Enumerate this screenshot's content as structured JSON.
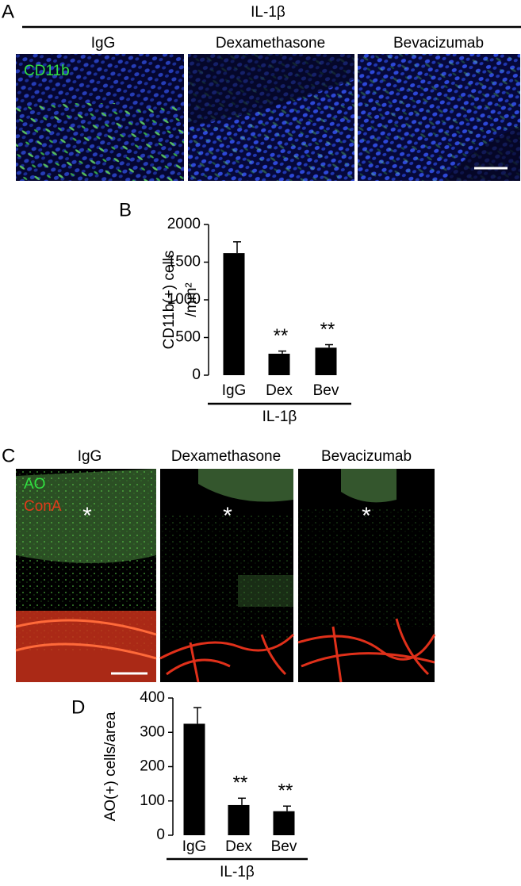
{
  "panels": {
    "A": {
      "label": "A",
      "group": "IL-1β",
      "columns": [
        "IgG",
        "Dexamethasone",
        "Bevacizumab"
      ],
      "stain": "CD11b"
    },
    "B": {
      "label": "B"
    },
    "C": {
      "label": "C",
      "columns": [
        "IgG",
        "Dexamethasone",
        "Bevacizumab"
      ],
      "stains": [
        "AO",
        "ConA"
      ],
      "markers": [
        "*",
        "*",
        "*"
      ]
    },
    "D": {
      "label": "D"
    }
  },
  "chart_data": [
    {
      "type": "bar",
      "ylabel": [
        "CD11b(+) cells",
        "/mm²"
      ],
      "xlabel": "IL-1β",
      "categories": [
        "IgG",
        "Dex",
        "Bev"
      ],
      "values": [
        1620,
        285,
        365
      ],
      "errors": [
        150,
        35,
        40
      ],
      "significance": [
        null,
        "**",
        "**"
      ],
      "color": "#000000",
      "ylim": [
        0,
        2000
      ],
      "yticks": [
        0,
        500,
        1000,
        1500,
        2000
      ]
    },
    {
      "type": "bar",
      "ylabel": [
        "AO(+) cells/area"
      ],
      "xlabel": "IL-1β",
      "categories": [
        "IgG",
        "Dex",
        "Bev"
      ],
      "values": [
        325,
        88,
        70
      ],
      "errors": [
        47,
        20,
        15
      ],
      "significance": [
        null,
        "**",
        "**"
      ],
      "color": "#000000",
      "ylim": [
        0,
        400
      ],
      "yticks": [
        0,
        100,
        200,
        300,
        400
      ]
    }
  ]
}
